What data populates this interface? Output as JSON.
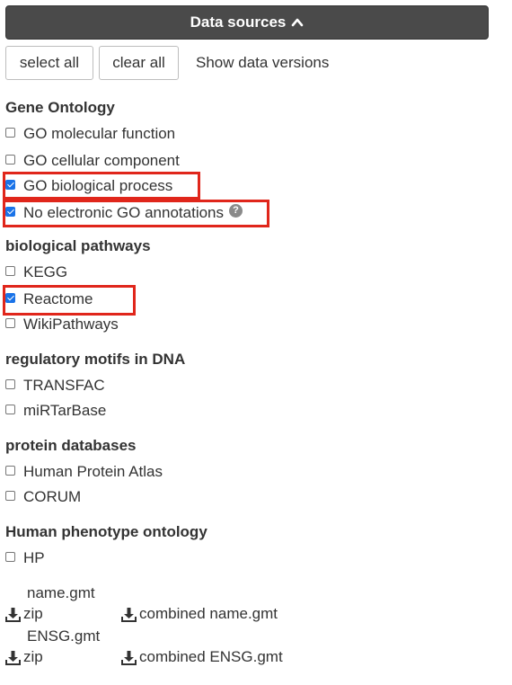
{
  "header": {
    "title": "Data sources",
    "icon": "chevron-up-icon"
  },
  "buttons": {
    "select_all": "select all",
    "clear_all": "clear all",
    "show_versions": "Show data versions"
  },
  "sections": {
    "go": {
      "title": "Gene Ontology",
      "items": [
        {
          "label": "GO molecular function",
          "checked": false
        },
        {
          "label": "GO cellular component",
          "checked": false
        },
        {
          "label": "GO biological process",
          "checked": true
        },
        {
          "label": "No electronic GO annotations",
          "checked": true
        }
      ]
    },
    "pathways": {
      "title": "biological pathways",
      "items": [
        {
          "label": "KEGG",
          "checked": false
        },
        {
          "label": "Reactome",
          "checked": true
        },
        {
          "label": "WikiPathways",
          "checked": false
        }
      ]
    },
    "motifs": {
      "title": "regulatory motifs in DNA",
      "items": [
        {
          "label": "TRANSFAC",
          "checked": false
        },
        {
          "label": "miRTarBase",
          "checked": false
        }
      ]
    },
    "protein": {
      "title": "protein databases",
      "items": [
        {
          "label": "Human Protein Atlas",
          "checked": false
        },
        {
          "label": "CORUM",
          "checked": false
        }
      ]
    },
    "phenotype": {
      "title": "Human phenotype ontology",
      "items": [
        {
          "label": "HP",
          "checked": false
        }
      ]
    }
  },
  "downloads": {
    "name": {
      "label": "name.gmt",
      "zip": "zip",
      "combined": "combined name.gmt"
    },
    "ensg": {
      "label": "ENSG.gmt",
      "zip": "zip",
      "combined": "combined ENSG.gmt"
    }
  },
  "colors": {
    "highlight": "#e0261b",
    "header_bg": "#4a4a4a",
    "checkbox_checked": "#1a73e8"
  }
}
